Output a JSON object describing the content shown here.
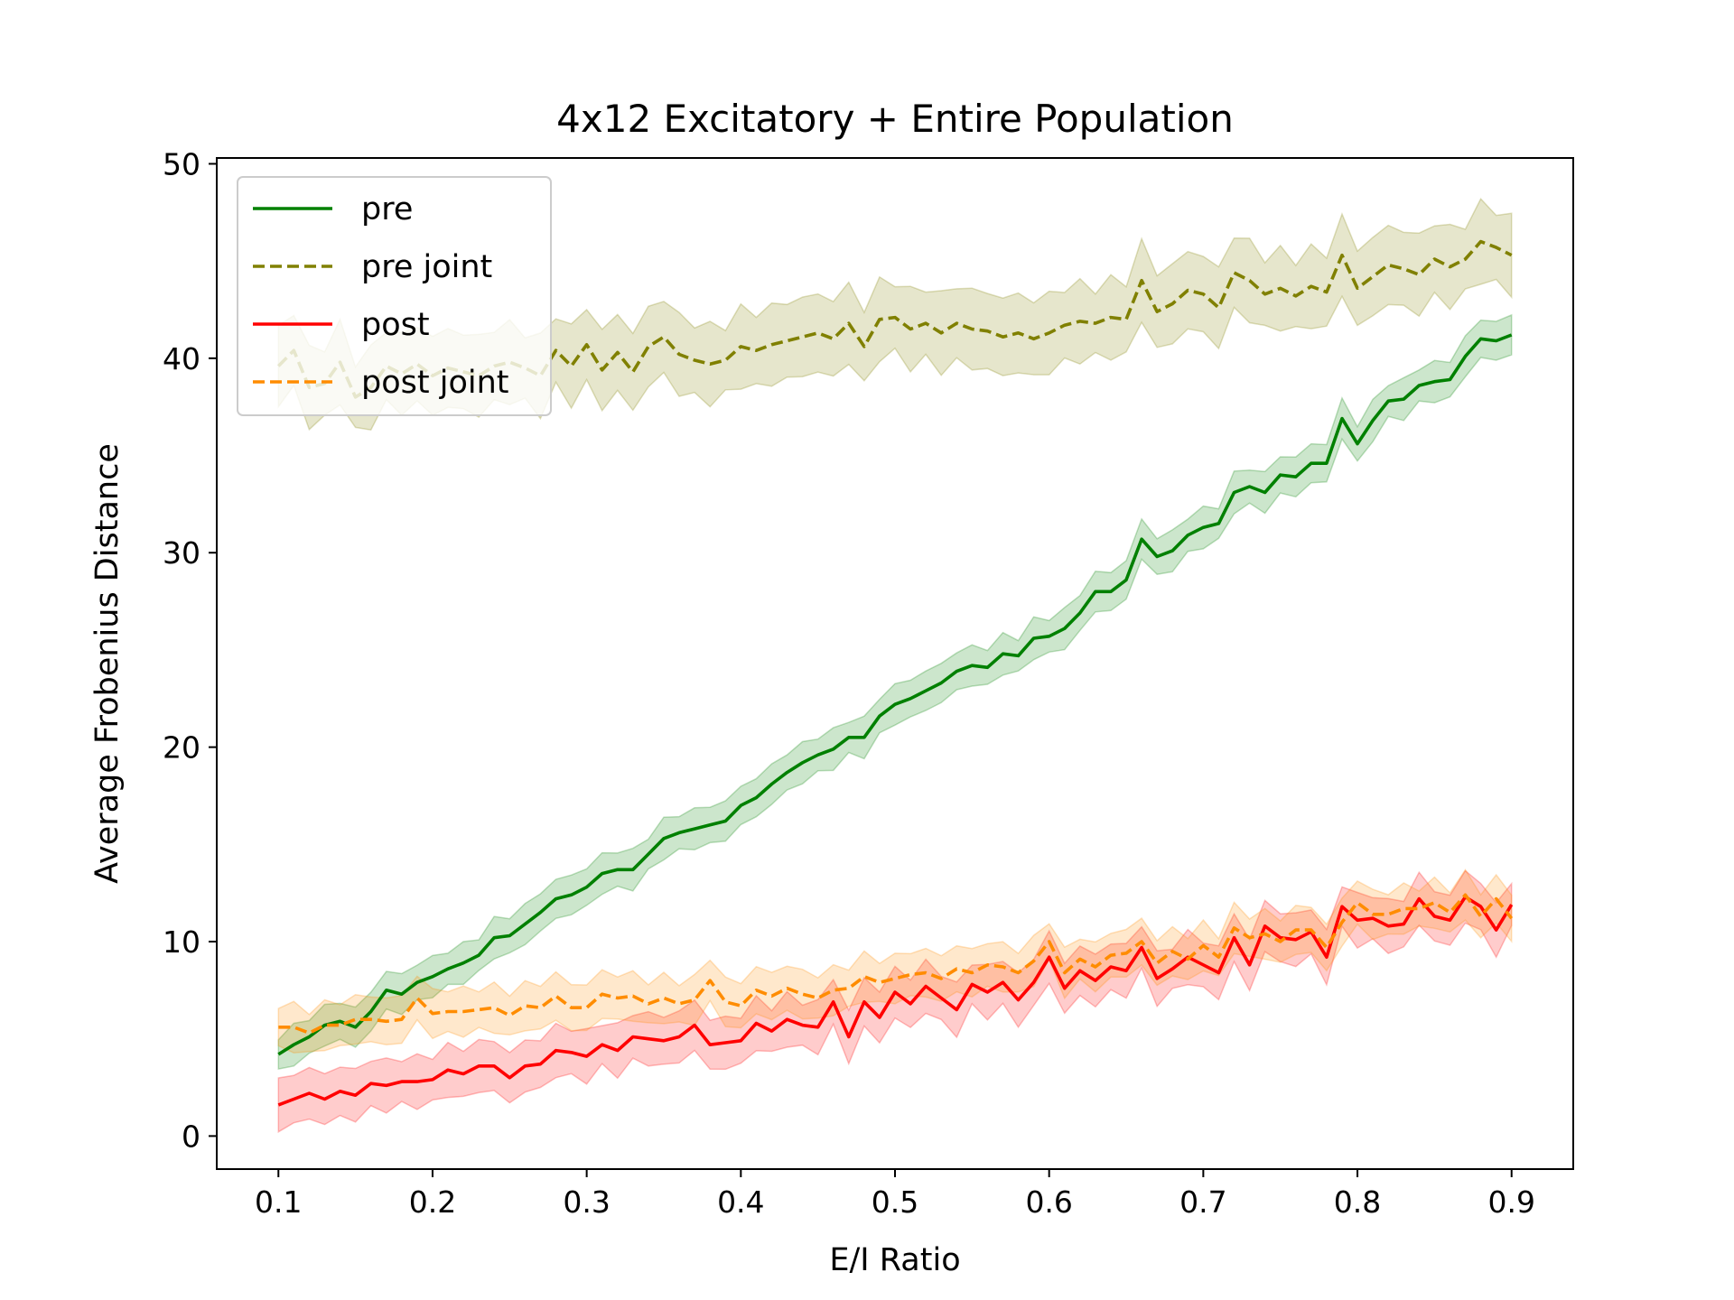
{
  "chart_data": {
    "type": "line",
    "title": "4x12 Excitatory + Entire Population",
    "xlabel": "E/I Ratio",
    "ylabel": "Average Frobenius Distance",
    "xlim": [
      0.06,
      0.94
    ],
    "ylim": [
      -1.7,
      50.3
    ],
    "x_ticks": [
      "0.1",
      "0.2",
      "0.3",
      "0.4",
      "0.5",
      "0.6",
      "0.7",
      "0.8",
      "0.9"
    ],
    "y_ticks": [
      "0",
      "10",
      "20",
      "30",
      "40",
      "50"
    ],
    "grid": false,
    "legend_position": "upper-left",
    "x_start": 0.1,
    "x_step": 0.01,
    "series": [
      {
        "name": "pre",
        "color": "#008000",
        "style": "solid",
        "values": [
          4.2,
          4.7,
          5.1,
          5.7,
          5.9,
          5.6,
          6.4,
          7.5,
          7.3,
          7.9,
          8.2,
          8.6,
          8.9,
          9.3,
          10.2,
          10.3,
          10.9,
          11.5,
          12.2,
          12.4,
          12.8,
          13.5,
          13.7,
          13.7,
          14.5,
          15.3,
          15.6,
          15.8,
          16.0,
          16.2,
          17.0,
          17.4,
          18.1,
          18.7,
          19.2,
          19.6,
          19.9,
          20.5,
          20.5,
          21.6,
          22.2,
          22.5,
          22.9,
          23.3,
          23.9,
          24.2,
          24.1,
          24.8,
          24.7,
          25.6,
          25.7,
          26.1,
          26.9,
          28.0,
          28.0,
          28.6,
          30.7,
          29.8,
          30.1,
          30.9,
          31.3,
          31.5,
          33.1,
          33.4,
          33.1,
          34.0,
          33.9,
          34.6,
          34.6,
          36.9,
          35.6,
          36.8,
          37.8,
          37.9,
          38.6,
          38.8,
          38.9,
          40.1,
          41.0,
          40.9,
          41.2
        ],
        "band": 1.0
      },
      {
        "name": "pre joint",
        "color": "#808000",
        "style": "dashed",
        "values": [
          39.6,
          40.4,
          38.5,
          38.7,
          39.8,
          38.0,
          38.5,
          39.6,
          39.2,
          39.7,
          39.1,
          39.5,
          39.3,
          39.1,
          39.6,
          39.8,
          39.5,
          39.1,
          40.4,
          39.6,
          40.7,
          39.4,
          40.3,
          39.3,
          40.6,
          41.1,
          40.2,
          39.9,
          39.7,
          39.9,
          40.6,
          40.4,
          40.7,
          40.9,
          41.1,
          41.3,
          41.0,
          41.8,
          40.6,
          42.0,
          42.1,
          41.5,
          41.8,
          41.3,
          41.8,
          41.5,
          41.4,
          41.1,
          41.3,
          41.0,
          41.3,
          41.7,
          41.9,
          41.8,
          42.1,
          42.0,
          44.0,
          42.4,
          42.8,
          43.5,
          43.3,
          42.6,
          44.4,
          44.0,
          43.3,
          43.6,
          43.2,
          43.7,
          43.4,
          45.3,
          43.6,
          44.2,
          44.8,
          44.6,
          44.3,
          45.1,
          44.7,
          45.1,
          46.0,
          45.7,
          45.3
        ],
        "band": 2.0
      },
      {
        "name": "post",
        "color": "#ff0000",
        "style": "solid",
        "values": [
          1.6,
          1.9,
          2.2,
          1.9,
          2.3,
          2.1,
          2.7,
          2.6,
          2.8,
          2.8,
          2.9,
          3.4,
          3.2,
          3.6,
          3.6,
          3.0,
          3.6,
          3.7,
          4.4,
          4.3,
          4.1,
          4.7,
          4.4,
          5.1,
          5.0,
          4.9,
          5.1,
          5.7,
          4.7,
          4.8,
          4.9,
          5.8,
          5.4,
          6.0,
          5.7,
          5.6,
          6.9,
          5.1,
          6.9,
          6.1,
          7.4,
          6.8,
          7.7,
          7.1,
          6.5,
          7.8,
          7.4,
          7.9,
          7.0,
          7.9,
          9.2,
          7.6,
          8.5,
          8.0,
          8.7,
          8.5,
          9.7,
          8.1,
          8.6,
          9.2,
          8.8,
          8.4,
          10.2,
          8.8,
          10.8,
          10.2,
          10.1,
          10.5,
          9.2,
          11.8,
          11.1,
          11.2,
          10.8,
          10.9,
          12.2,
          11.3,
          11.1,
          12.3,
          11.8,
          10.6,
          11.9
        ],
        "band": 1.3
      },
      {
        "name": "post joint",
        "color": "#ff8c00",
        "style": "dashed",
        "values": [
          5.6,
          5.6,
          5.3,
          5.7,
          5.7,
          6.0,
          6.0,
          5.9,
          6.0,
          7.1,
          6.3,
          6.4,
          6.4,
          6.5,
          6.6,
          6.2,
          6.7,
          6.6,
          7.2,
          6.6,
          6.6,
          7.3,
          7.1,
          7.2,
          6.8,
          7.1,
          6.8,
          7.0,
          8.0,
          6.9,
          6.7,
          7.5,
          7.2,
          7.6,
          7.3,
          7.1,
          7.5,
          7.6,
          8.2,
          7.9,
          8.1,
          8.3,
          8.4,
          8.1,
          8.6,
          8.4,
          8.8,
          8.7,
          8.4,
          9.0,
          10.0,
          8.4,
          9.1,
          8.7,
          9.3,
          9.4,
          10.0,
          8.9,
          9.5,
          9.1,
          9.8,
          9.2,
          10.7,
          10.2,
          10.4,
          10.0,
          10.6,
          10.6,
          9.7,
          11.0,
          12.0,
          11.4,
          11.4,
          11.7,
          11.7,
          12.0,
          11.5,
          12.4,
          11.3,
          12.2,
          11.2
        ],
        "band": 1.2
      }
    ]
  }
}
